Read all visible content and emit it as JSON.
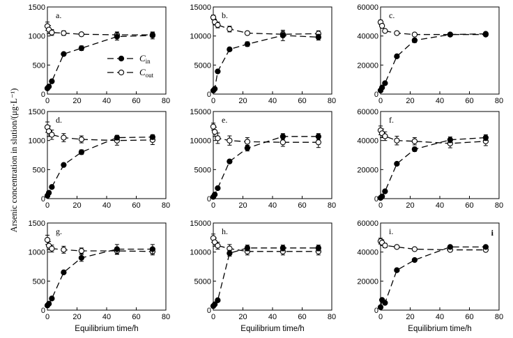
{
  "chart_data": {
    "type": "line",
    "ylabel": "Arsenic concentration in slution/(μg·L⁻¹)",
    "xlabel": "Equilibrium time/h",
    "legend": {
      "cin": {
        "main": "C",
        "sub": "in"
      },
      "cout": {
        "main": "C",
        "sub": "out"
      }
    },
    "x_ticks": [
      "0",
      "20",
      "40",
      "60",
      "80"
    ],
    "xlim": [
      0,
      80
    ],
    "panels": [
      {
        "label": "a.",
        "ylim": [
          0,
          1500
        ],
        "yticks": [
          "0",
          "500",
          "1000",
          "1500"
        ],
        "cin": {
          "x": [
            0,
            1,
            3,
            11,
            23,
            47,
            71
          ],
          "y": [
            100,
            130,
            220,
            690,
            790,
            990,
            1010
          ],
          "err": [
            0,
            0,
            0,
            20,
            40,
            60,
            60
          ]
        },
        "cout": {
          "x": [
            0,
            1,
            3,
            11,
            23,
            47,
            71
          ],
          "y": [
            1170,
            1110,
            1060,
            1050,
            1030,
            1020,
            1020
          ],
          "err": [
            70,
            70,
            50,
            40,
            30,
            50,
            40
          ]
        }
      },
      {
        "label": "b.",
        "ylim": [
          0,
          15000
        ],
        "yticks": [
          "0",
          "5000",
          "10000",
          "15000"
        ],
        "cin": {
          "x": [
            0,
            1,
            3,
            11,
            23,
            47,
            71
          ],
          "y": [
            600,
            900,
            3900,
            7700,
            8600,
            10100,
            9800
          ],
          "err": [
            0,
            0,
            0,
            300,
            400,
            900,
            500
          ]
        },
        "cout": {
          "x": [
            0,
            1,
            3,
            11,
            23,
            47,
            71
          ],
          "y": [
            13200,
            12400,
            11900,
            11200,
            10500,
            10300,
            10400
          ],
          "err": [
            400,
            500,
            500,
            500,
            300,
            500,
            500
          ]
        }
      },
      {
        "label": "c.",
        "ylim": [
          0,
          60000
        ],
        "yticks": [
          "0",
          "20000",
          "40000",
          "60000"
        ],
        "cin": {
          "x": [
            0,
            1,
            3,
            11,
            23,
            47,
            71
          ],
          "y": [
            2500,
            4500,
            7500,
            26000,
            37000,
            41000,
            41500
          ],
          "err": [
            0,
            0,
            0,
            800,
            1500,
            1000,
            1000
          ]
        },
        "cout": {
          "x": [
            0,
            1,
            3,
            11,
            23,
            47,
            71
          ],
          "y": [
            49500,
            47000,
            43500,
            42000,
            41000,
            41000,
            41000
          ],
          "err": [
            1500,
            1500,
            1000,
            800,
            800,
            800,
            800
          ]
        }
      },
      {
        "label": "d.",
        "ylim": [
          0,
          1500
        ],
        "yticks": [
          "0",
          "500",
          "1000",
          "1500"
        ],
        "cin": {
          "x": [
            0,
            1,
            3,
            11,
            23,
            47,
            71
          ],
          "y": [
            50,
            100,
            200,
            580,
            800,
            1050,
            1060
          ],
          "err": [
            0,
            0,
            0,
            20,
            40,
            40,
            40
          ]
        },
        "cout": {
          "x": [
            0,
            1,
            3,
            11,
            23,
            47,
            71
          ],
          "y": [
            1230,
            1160,
            1100,
            1050,
            1020,
            1000,
            1010
          ],
          "err": [
            90,
            90,
            80,
            70,
            60,
            80,
            80
          ]
        }
      },
      {
        "label": "e.",
        "ylim": [
          0,
          15000
        ],
        "yticks": [
          "0",
          "5000",
          "10000",
          "15000"
        ],
        "cin": {
          "x": [
            0,
            1,
            3,
            11,
            23,
            47,
            71
          ],
          "y": [
            300,
            700,
            1800,
            6400,
            8700,
            10700,
            10700
          ],
          "err": [
            0,
            0,
            0,
            300,
            500,
            500,
            500
          ]
        },
        "cout": {
          "x": [
            0,
            1,
            3,
            11,
            23,
            47,
            71
          ],
          "y": [
            12400,
            11500,
            10400,
            10000,
            9800,
            9700,
            9700
          ],
          "err": [
            600,
            800,
            900,
            800,
            700,
            700,
            900
          ]
        }
      },
      {
        "label": "f.",
        "ylim": [
          0,
          60000
        ],
        "yticks": [
          "0",
          "20000",
          "40000",
          "60000"
        ],
        "cin": {
          "x": [
            0,
            1,
            3,
            11,
            23,
            47,
            71
          ],
          "y": [
            500,
            1500,
            5000,
            24000,
            34000,
            40500,
            42000
          ],
          "err": [
            0,
            0,
            0,
            800,
            1500,
            2000,
            2000
          ]
        },
        "cout": {
          "x": [
            0,
            1,
            3,
            11,
            23,
            47,
            71
          ],
          "y": [
            47000,
            45000,
            43000,
            40000,
            39500,
            38000,
            39500
          ],
          "err": [
            3000,
            3000,
            3000,
            3000,
            2500,
            3000,
            3000
          ]
        }
      },
      {
        "label": "g.",
        "ylim": [
          0,
          1500
        ],
        "yticks": [
          "0",
          "500",
          "1000",
          "1500"
        ],
        "cin": {
          "x": [
            0,
            1,
            3,
            11,
            23,
            47,
            71
          ],
          "y": [
            80,
            110,
            200,
            650,
            900,
            1050,
            1050
          ],
          "err": [
            0,
            0,
            0,
            20,
            60,
            80,
            80
          ]
        },
        "cout": {
          "x": [
            0,
            1,
            3,
            11,
            23,
            47,
            71
          ],
          "y": [
            1210,
            1110,
            1060,
            1040,
            1020,
            1020,
            1010
          ],
          "err": [
            80,
            70,
            60,
            60,
            50,
            60,
            60
          ]
        }
      },
      {
        "label": "h.",
        "ylim": [
          0,
          15000
        ],
        "yticks": [
          "0",
          "5000",
          "10000",
          "15000"
        ],
        "cin": {
          "x": [
            0,
            1,
            3,
            11,
            23,
            47,
            71
          ],
          "y": [
            700,
            1000,
            1700,
            9800,
            10700,
            10700,
            10700
          ],
          "err": [
            0,
            0,
            0,
            500,
            500,
            500,
            500
          ]
        },
        "cout": {
          "x": [
            0,
            1,
            3,
            11,
            23,
            47,
            71
          ],
          "y": [
            12400,
            11700,
            11100,
            10600,
            10100,
            10100,
            10100
          ],
          "err": [
            700,
            700,
            600,
            700,
            600,
            600,
            600
          ]
        }
      },
      {
        "label": "i.",
        "ylim": [
          0,
          60000
        ],
        "yticks": [
          "0",
          "20000",
          "40000",
          "60000"
        ],
        "extra_label": "i",
        "cin": {
          "x": [
            0,
            1,
            3,
            11,
            23,
            47,
            71
          ],
          "y": [
            2000,
            7000,
            5000,
            27500,
            34500,
            43500,
            43500
          ],
          "err": [
            0,
            0,
            0,
            800,
            800,
            1000,
            1000
          ]
        },
        "cout": {
          "x": [
            0,
            1,
            3,
            11,
            23,
            47,
            71
          ],
          "y": [
            47500,
            46500,
            44500,
            43500,
            42000,
            41500,
            41500
          ],
          "err": [
            2000,
            2000,
            1500,
            1000,
            1000,
            1000,
            1000
          ]
        }
      }
    ]
  }
}
